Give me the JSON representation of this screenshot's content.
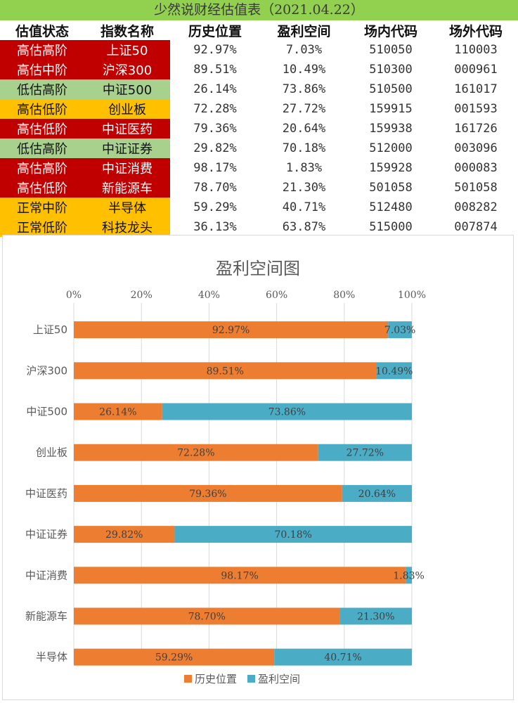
{
  "title": "少然说财经估值表（2021.04.22）",
  "table": {
    "headers": [
      "估值状态",
      "指数名称",
      "历史位置",
      "盈利空间",
      "场内代码",
      "场外代码"
    ],
    "rows": [
      {
        "status": "高估高阶",
        "name": "上证50",
        "position": "92.97%",
        "space": "7.03%",
        "onsite": "510050",
        "offsite": "110003",
        "status_color": "#c00000",
        "name_color": "#c00000"
      },
      {
        "status": "高估中阶",
        "name": "沪深300",
        "position": "89.51%",
        "space": "10.49%",
        "onsite": "510300",
        "offsite": "000961",
        "status_color": "#c00000",
        "name_color": "#c00000"
      },
      {
        "status": "低估高阶",
        "name": "中证500",
        "position": "26.14%",
        "space": "73.86%",
        "onsite": "510500",
        "offsite": "161017",
        "status_color": "#a9d18e",
        "name_color": "#a9d18e"
      },
      {
        "status": "高估低阶",
        "name": "创业板",
        "position": "72.28%",
        "space": "27.72%",
        "onsite": "159915",
        "offsite": "001593",
        "status_color": "#ffc000",
        "name_color": "#ffc000"
      },
      {
        "status": "高估低阶",
        "name": "中证医药",
        "position": "79.36%",
        "space": "20.64%",
        "onsite": "159938",
        "offsite": "161726",
        "status_color": "#c00000",
        "name_color": "#c00000"
      },
      {
        "status": "低估高阶",
        "name": "中证证券",
        "position": "29.82%",
        "space": "70.18%",
        "onsite": "512000",
        "offsite": "003096",
        "status_color": "#a9d18e",
        "name_color": "#a9d18e"
      },
      {
        "status": "高估高阶",
        "name": "中证消费",
        "position": "98.17%",
        "space": "1.83%",
        "onsite": "159928",
        "offsite": "000083",
        "status_color": "#c00000",
        "name_color": "#c00000"
      },
      {
        "status": "高估低阶",
        "name": "新能源车",
        "position": "78.70%",
        "space": "21.30%",
        "onsite": "501058",
        "offsite": "501058",
        "status_color": "#c00000",
        "name_color": "#c00000"
      },
      {
        "status": "正常中阶",
        "name": "半导体",
        "position": "59.29%",
        "space": "40.71%",
        "onsite": "512480",
        "offsite": "008282",
        "status_color": "#ffc000",
        "name_color": "#ffc000"
      },
      {
        "status": "正常低阶",
        "name": "科技龙头",
        "position": "36.13%",
        "space": "63.87%",
        "onsite": "515000",
        "offsite": "007874",
        "status_color": "#ffc000",
        "name_color": "#ffc000"
      }
    ]
  },
  "chart_data": {
    "type": "bar",
    "orientation": "horizontal",
    "stacked": true,
    "title": "盈利空间图",
    "categories": [
      "上证50",
      "沪深300",
      "中证500",
      "创业板",
      "中证医药",
      "中证证券",
      "中证消费",
      "新能源车",
      "半导体"
    ],
    "series": [
      {
        "name": "历史位置",
        "color": "#ed7d31",
        "values": [
          92.97,
          89.51,
          26.14,
          72.28,
          79.36,
          29.82,
          98.17,
          78.7,
          59.29
        ],
        "labels": [
          "92.97%",
          "89.51%",
          "26.14%",
          "72.28%",
          "79.36%",
          "29.82%",
          "98.17%",
          "78.70%",
          "59.29%"
        ]
      },
      {
        "name": "盈利空间",
        "color": "#4bacc6",
        "values": [
          7.03,
          10.49,
          73.86,
          27.72,
          20.64,
          70.18,
          1.83,
          21.3,
          40.71
        ],
        "labels": [
          "7.03%",
          "10.49%",
          "73.86%",
          "27.72%",
          "20.64%",
          "70.18%",
          "1.83%",
          "21.30%",
          "40.71%"
        ]
      }
    ],
    "xlim": [
      0,
      100
    ],
    "xticks": [
      "0%",
      "20%",
      "40%",
      "60%",
      "80%",
      "100%"
    ],
    "axis_position": "top",
    "legend_position": "bottom"
  }
}
